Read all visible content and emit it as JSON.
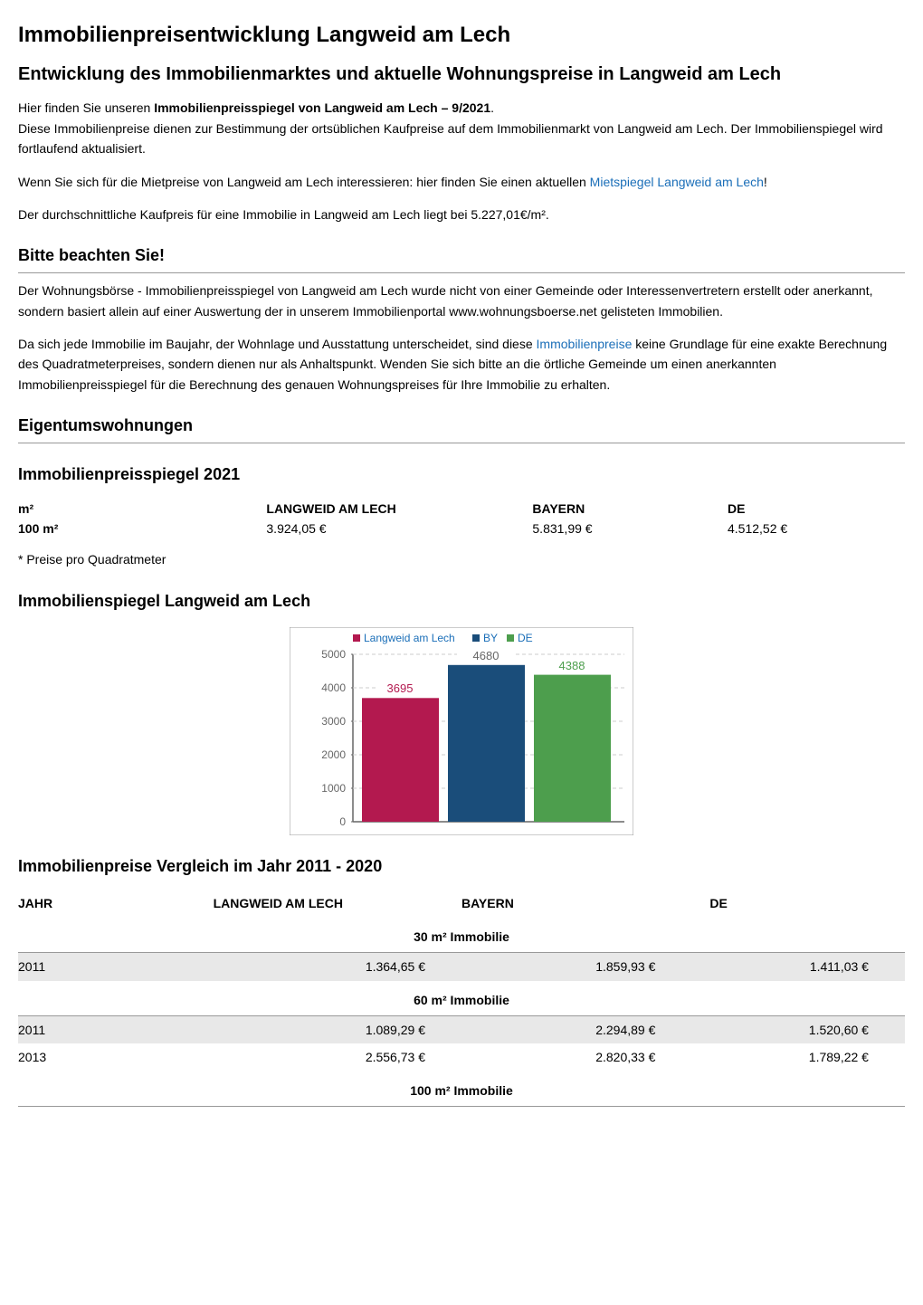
{
  "title": "Immobilienpreisentwicklung Langweid am Lech",
  "subtitle": "Entwicklung des Immobilienmarktes und aktuelle Wohnungspreise in Langweid am Lech",
  "intro": {
    "text1_a": "Hier finden Sie unseren ",
    "text1_b": "Immobilienpreisspiegel von Langweid am Lech – 9/2021",
    "text1_c": ".",
    "text2": "Diese Immobilienpreise dienen zur Bestimmung der ortsüblichen Kaufpreise auf dem Immobilienmarkt von Langweid am Lech. Der Immobilienspiegel wird fortlaufend aktualisiert.",
    "text3_a": "Wenn Sie sich für die Mietpreise von Langweid am Lech interessieren: hier finden Sie einen aktuellen ",
    "link1": "Mietspiegel Langweid am Lech",
    "text3_b": "!",
    "text4": "Der durchschnittliche Kaufpreis für eine Immobilie in Langweid am Lech liegt bei 5.227,01€/m²."
  },
  "notice": {
    "heading": "Bitte beachten Sie!",
    "text1": "Der Wohnungsbörse - Immobilienpreisspiegel von Langweid am Lech wurde nicht von einer Gemeinde oder Interessenvertretern erstellt oder anerkannt, sondern basiert allein auf einer Auswertung der in unserem Immobilienportal www.wohnungsboerse.net gelisteten Immobilien.",
    "text2_a": "Da sich jede Immobilie im Baujahr, der Wohnlage und Ausstattung unterscheidet, sind diese ",
    "link2": "Immobilienpreise",
    "text2_b": " keine Grundlage für eine exakte Berechnung des Quadratmeterpreises, sondern dienen nur als Anhaltspunkt. Wenden Sie sich bitte an die örtliche Gemeinde um einen anerkannten Immobilienpreisspiegel für die Berechnung des genauen Wohnungspreises für Ihre Immobilie zu erhalten."
  },
  "section_eigentum": {
    "heading": "Eigentumswohnungen",
    "subheading": "Immobilienpreisspiegel 2021",
    "table": {
      "headers": {
        "m2": "m²",
        "langweid": "LANGWEID AM LECH",
        "bayern": "BAYERN",
        "de": "DE"
      },
      "row": {
        "m2": "100 m²",
        "langweid": "3.924,05 €",
        "bayern": "5.831,99 €",
        "de": "4.512,52 €"
      }
    },
    "footnote": "* Preise pro Quadratmeter"
  },
  "chart": {
    "heading": "Immobilienspiegel Langweid am Lech",
    "legend": {
      "langweid": "Langweid am Lech",
      "by": "BY",
      "de": "DE"
    },
    "data": {
      "langweid": 3695,
      "by": 4680,
      "de": 4388
    },
    "colors": {
      "langweid": "#b3194f",
      "by": "#1a4d7a",
      "de": "#4d9e4d",
      "label_langweid": "#b3194f",
      "label_by": "#666666",
      "label_de": "#4d9e4d",
      "legend_text": "#1a6eb8",
      "axis": "#666666",
      "grid": "#cccccc",
      "border": "#999999"
    },
    "ylim": [
      0,
      5000
    ],
    "ytick_step": 1000,
    "yticks": [
      0,
      1000,
      2000,
      3000,
      4000,
      5000
    ],
    "bar_width": 0.7,
    "background_color": "#ffffff"
  },
  "comparison": {
    "heading": "Immobilienpreise Vergleich im Jahr 2011 - 2020",
    "headers": {
      "jahr": "JAHR",
      "langweid": "LANGWEID AM LECH",
      "bayern": "BAYERN",
      "de": "DE"
    },
    "sections": [
      {
        "title": "30 m² Immobilie",
        "rows": [
          {
            "year": "2011",
            "langweid": "1.364,65 €",
            "bayern": "1.859,93 €",
            "de": "1.411,03 €",
            "shaded": true
          }
        ]
      },
      {
        "title": "60 m² Immobilie",
        "rows": [
          {
            "year": "2011",
            "langweid": "1.089,29 €",
            "bayern": "2.294,89 €",
            "de": "1.520,60 €",
            "shaded": true
          },
          {
            "year": "2013",
            "langweid": "2.556,73 €",
            "bayern": "2.820,33 €",
            "de": "1.789,22 €",
            "shaded": false
          }
        ]
      },
      {
        "title": "100 m² Immobilie",
        "rows": []
      }
    ]
  }
}
